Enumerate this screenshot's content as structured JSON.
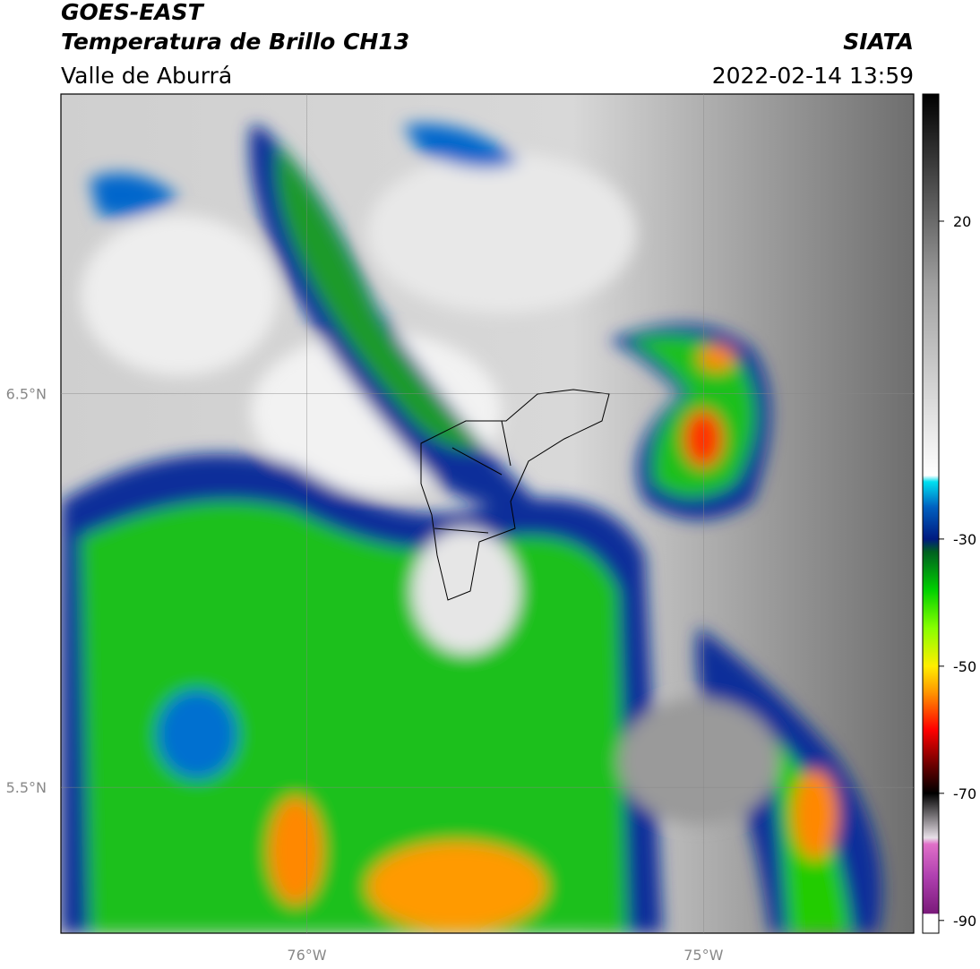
{
  "header": {
    "title": "GOES-EAST",
    "subtitle": "Temperatura de Brillo CH13",
    "region": "Valle de Aburrá",
    "source": "SIATA",
    "datetime": "2022-02-14 13:59"
  },
  "chart_data": {
    "type": "map",
    "xlim": [
      -76.62,
      -74.47
    ],
    "ylim": [
      5.13,
      7.26
    ],
    "xticks": [
      {
        "value": -76,
        "label": "76°W"
      },
      {
        "value": -75,
        "label": "75°W"
      }
    ],
    "yticks": [
      {
        "value": 6.5,
        "label": "6.5°N"
      },
      {
        "value": 5.5,
        "label": "5.5°N"
      }
    ],
    "grid": true,
    "colorbar": {
      "lim": [
        -92,
        40
      ],
      "ticks": [
        20,
        -30,
        -50,
        -70,
        -90
      ],
      "stops": [
        {
          "value": -92,
          "color": "#ffffff"
        },
        {
          "value": -89,
          "color": "#ffffff"
        },
        {
          "value": -88.9,
          "color": "#7a1a7a"
        },
        {
          "value": -83,
          "color": "#b040b0"
        },
        {
          "value": -78,
          "color": "#e070c8"
        },
        {
          "value": -77,
          "color": "#e8e0e8"
        },
        {
          "value": -70,
          "color": "#000000"
        },
        {
          "value": -66,
          "color": "#600000"
        },
        {
          "value": -60,
          "color": "#ff0000"
        },
        {
          "value": -54,
          "color": "#ff9900"
        },
        {
          "value": -50,
          "color": "#ffee00"
        },
        {
          "value": -44,
          "color": "#88ff00"
        },
        {
          "value": -38,
          "color": "#00d000"
        },
        {
          "value": -32,
          "color": "#006020"
        },
        {
          "value": -30,
          "color": "#001a80"
        },
        {
          "value": -25,
          "color": "#0060c0"
        },
        {
          "value": -21,
          "color": "#00e0f0"
        },
        {
          "value": -20,
          "color": "#ffffff"
        },
        {
          "value": 10,
          "color": "#a0a0a0"
        },
        {
          "value": 40,
          "color": "#000000"
        }
      ]
    }
  }
}
